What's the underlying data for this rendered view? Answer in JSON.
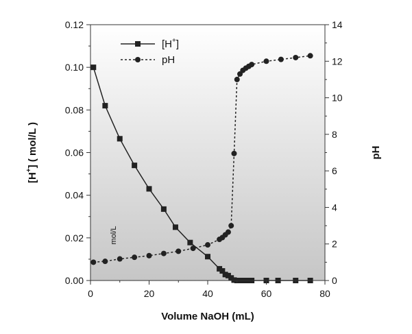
{
  "chart_data": {
    "type": "line",
    "x_axis": {
      "label": "Volume NaOH (mL)",
      "range": [
        0,
        80
      ],
      "ticks": [
        0,
        20,
        40,
        60,
        80
      ]
    },
    "y_axis_left": {
      "label_main": "[H",
      "label_sup": "+",
      "label_rest": "] ( mol/L )",
      "range": [
        0,
        0.12
      ],
      "ticks": [
        "0.00",
        "0.02",
        "0.04",
        "0.06",
        "0.08",
        "0.10",
        "0.12"
      ]
    },
    "y_axis_right": {
      "label": "pH",
      "range": [
        0,
        14
      ],
      "ticks": [
        0,
        2,
        4,
        6,
        8,
        10,
        12,
        14
      ]
    },
    "legend": {
      "position": "top-left",
      "items": [
        {
          "name_main": "[H",
          "name_sup": "+",
          "name_rest": "]",
          "marker": "square",
          "line": "solid"
        },
        {
          "name_main": "pH",
          "name_sup": "",
          "name_rest": "",
          "marker": "circle",
          "line": "dotted"
        }
      ]
    },
    "annotation": "mol/L",
    "background": "vertical gradient white to light gray",
    "series": [
      {
        "axis": "left",
        "marker": "square",
        "line": "solid",
        "x": [
          1,
          5,
          10,
          15,
          20,
          25,
          29,
          34,
          40,
          44,
          45,
          46,
          47,
          48,
          49,
          50,
          51,
          52,
          53,
          54,
          55,
          60,
          64,
          70,
          75
        ],
        "y": [
          0.1,
          0.082,
          0.0665,
          0.054,
          0.043,
          0.0335,
          0.025,
          0.0178,
          0.0112,
          0.0055,
          0.0045,
          0.0028,
          0.0023,
          0.0012,
          0.0002,
          0,
          0,
          0,
          0,
          0,
          0,
          0,
          0,
          0,
          0
        ]
      },
      {
        "axis": "right",
        "marker": "circle",
        "line": "dotted",
        "x": [
          1,
          5,
          10,
          15,
          20,
          25,
          30,
          35,
          40,
          44,
          45,
          46,
          47,
          48,
          49,
          50,
          51,
          52,
          53,
          54,
          55,
          60,
          65,
          70,
          75
        ],
        "y": [
          1.0,
          1.05,
          1.18,
          1.27,
          1.36,
          1.48,
          1.6,
          1.76,
          1.95,
          2.25,
          2.35,
          2.5,
          2.65,
          3.0,
          6.95,
          11.0,
          11.3,
          11.5,
          11.62,
          11.72,
          11.82,
          12.0,
          12.1,
          12.2,
          12.3
        ]
      }
    ]
  }
}
